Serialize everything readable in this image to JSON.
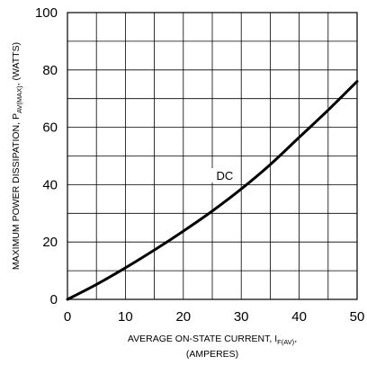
{
  "chart_data": {
    "type": "line",
    "title": "",
    "xlabel": {
      "line1_main": "AVERAGE ON-STATE  CURRENT, I",
      "line1_sub": "F(AV)",
      "line1_end": ",",
      "line2": "(AMPERES)"
    },
    "ylabel": {
      "main": "MAXIMUM POWER DISSIPATION, P",
      "sub": "AV(MAX)",
      "end": ", (WATTS)"
    },
    "xlim": [
      0,
      50
    ],
    "ylim": [
      0,
      100
    ],
    "x_ticks": [
      0,
      10,
      20,
      30,
      40,
      50
    ],
    "y_ticks": [
      0,
      20,
      40,
      60,
      80,
      100
    ],
    "grid": true,
    "grid_x_step": 5,
    "grid_y_step": 10,
    "series": [
      {
        "name": "DC",
        "x": [
          0,
          5,
          10,
          15,
          20,
          25,
          30,
          35,
          40,
          45,
          50
        ],
        "y": [
          0,
          5.2,
          11,
          17.2,
          23.8,
          30.8,
          38.5,
          47,
          56.5,
          66,
          76
        ]
      }
    ],
    "annotations": [
      {
        "text": "DC",
        "x": 27,
        "y": 42
      }
    ],
    "colors": {
      "line": "#000000",
      "grid": "#000000",
      "background": "#ffffff"
    }
  }
}
